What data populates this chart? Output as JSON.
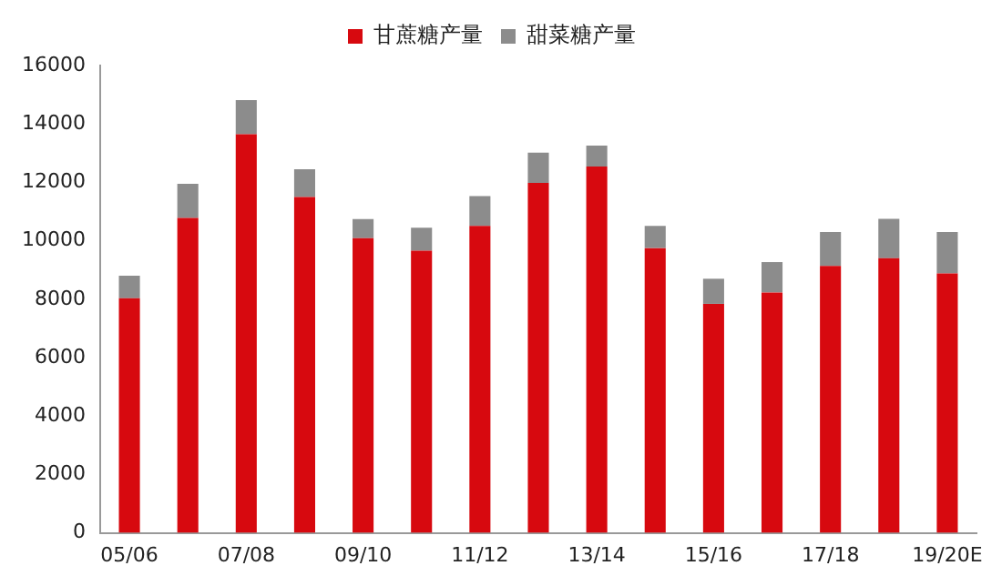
{
  "chart_data": {
    "type": "bar",
    "stacked": true,
    "legend": "top",
    "grid": false,
    "categories": [
      "05/06",
      null,
      "07/08",
      null,
      "09/10",
      null,
      "11/12",
      null,
      "13/14",
      null,
      "15/16",
      null,
      "17/18",
      null,
      "19/20E"
    ],
    "series": [
      {
        "name": "甘蔗糖产量",
        "color": "#d7090f",
        "values": [
          8030,
          10780,
          13650,
          11500,
          10090,
          9660,
          10510,
          11980,
          12540,
          9750,
          7840,
          8230,
          9140,
          9400,
          8880
        ]
      },
      {
        "name": "甜菜糖产量",
        "color": "#8c8c8c",
        "values": [
          770,
          1170,
          1170,
          950,
          650,
          790,
          1020,
          1040,
          720,
          760,
          860,
          1040,
          1160,
          1350,
          1420
        ]
      }
    ],
    "ylim": [
      0,
      16000
    ],
    "yticks": [
      0,
      2000,
      4000,
      6000,
      8000,
      10000,
      12000,
      14000,
      16000
    ]
  }
}
